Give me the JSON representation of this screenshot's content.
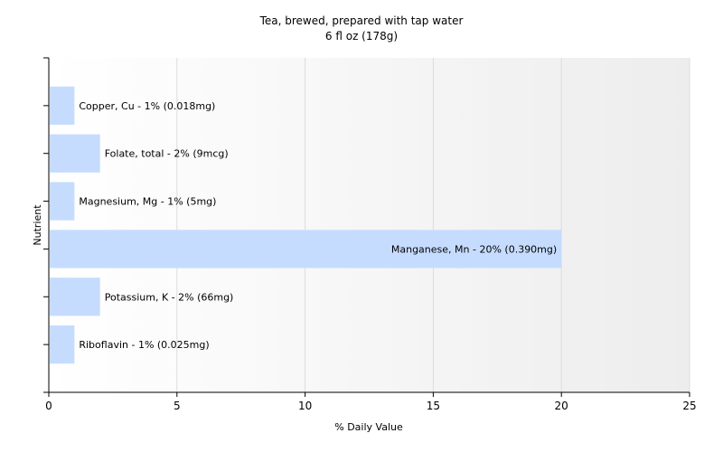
{
  "chart_data": {
    "type": "bar",
    "orientation": "horizontal",
    "title": "Tea, brewed, prepared with tap water",
    "subtitle": "6 fl oz (178g)",
    "xlabel": "% Daily Value",
    "ylabel": "Nutrient",
    "xlim": [
      0,
      25
    ],
    "xticks": [
      0,
      5,
      10,
      15,
      20,
      25
    ],
    "grid": true,
    "legend": "none",
    "bar_color": "#c6dcff",
    "categories": [
      "Copper, Cu",
      "Folate, total",
      "Magnesium, Mg",
      "Manganese, Mn",
      "Potassium, K",
      "Riboflavin"
    ],
    "values": [
      1,
      2,
      1,
      20,
      2,
      1
    ],
    "labels": [
      "Copper, Cu - 1% (0.018mg)",
      "Folate, total - 2% (9mcg)",
      "Magnesium, Mg - 1% (5mg)",
      "Manganese, Mn - 20% (0.390mg)",
      "Potassium, K - 2% (66mg)",
      "Riboflavin - 1% (0.025mg)"
    ]
  }
}
